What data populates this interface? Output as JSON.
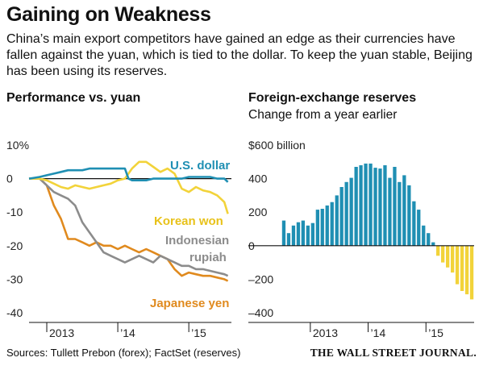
{
  "title": "Gaining on Weakness",
  "dek": "China’s main export competitors have gained an edge as their currencies have fallen against the yuan, which is tied to the dollar. To keep the yuan stable, Beijing has been using its reserves.",
  "source": "Sources: Tullett Prebon (forex); FactSet (reserves)",
  "brand": "THE WALL STREET JOURNAL.",
  "chart_data": [
    {
      "type": "line",
      "title": "Performance vs. yuan",
      "ylabel": "",
      "ylim": [
        -40,
        10
      ],
      "grid": false,
      "y_ticks": [
        {
          "v": 10,
          "label": "10%"
        },
        {
          "v": 0,
          "label": "0"
        },
        {
          "v": -10,
          "label": "-10"
        },
        {
          "v": -20,
          "label": "-20"
        },
        {
          "v": -30,
          "label": "-30"
        },
        {
          "v": -40,
          "label": "-40"
        }
      ],
      "x_ticks": [
        {
          "x": 2013.0,
          "label": "2013"
        },
        {
          "x": 2014.0,
          "label": "’14"
        },
        {
          "x": 2015.0,
          "label": "’15"
        }
      ],
      "x_range": [
        2012.75,
        2015.6
      ],
      "colors": {
        "U.S. dollar": "#1f8fb3",
        "Korean won": "#f2d33a",
        "Indonesian rupiah": "#8c8c8c",
        "Japanese yen": "#e08a1e"
      },
      "series": [
        {
          "name": "U.S. dollar",
          "label_lines": [
            "U.S. dollar"
          ],
          "x": [
            2012.75,
            2012.9,
            2013.0,
            2013.1,
            2013.2,
            2013.3,
            2013.4,
            2013.5,
            2013.6,
            2013.7,
            2013.8,
            2013.9,
            2014.0,
            2014.1,
            2014.15,
            2014.2,
            2014.3,
            2014.4,
            2014.5,
            2014.6,
            2014.7,
            2014.8,
            2014.9,
            2015.0,
            2015.1,
            2015.2,
            2015.3,
            2015.4,
            2015.5,
            2015.55
          ],
          "values": [
            0,
            0.5,
            1,
            1.5,
            2,
            2.5,
            2.5,
            2.5,
            3,
            3,
            3,
            3,
            3,
            3,
            0,
            -0.5,
            -0.5,
            -0.5,
            0,
            0,
            0,
            0,
            0,
            0.5,
            0.5,
            0.5,
            0.5,
            0,
            0,
            -1
          ]
        },
        {
          "name": "Korean won",
          "label_lines": [
            "Korean won"
          ],
          "x": [
            2012.75,
            2012.9,
            2013.0,
            2013.1,
            2013.2,
            2013.3,
            2013.4,
            2013.5,
            2013.6,
            2013.7,
            2013.8,
            2013.9,
            2014.0,
            2014.1,
            2014.2,
            2014.3,
            2014.4,
            2014.5,
            2014.6,
            2014.7,
            2014.8,
            2014.9,
            2015.0,
            2015.1,
            2015.2,
            2015.3,
            2015.4,
            2015.5,
            2015.55
          ],
          "values": [
            0,
            0,
            -0.5,
            -1.5,
            -2.5,
            -3,
            -2,
            -2.5,
            -3,
            -2.5,
            -2,
            -1.5,
            -0.5,
            0,
            3,
            5,
            5,
            3.5,
            2,
            3,
            1.5,
            -3,
            -4,
            -2.5,
            -3.5,
            -4,
            -5,
            -7,
            -10.5
          ]
        },
        {
          "name": "Indonesian rupiah",
          "label_lines": [
            "Indonesian",
            "rupiah"
          ],
          "x": [
            2012.75,
            2012.9,
            2013.0,
            2013.1,
            2013.2,
            2013.3,
            2013.4,
            2013.5,
            2013.6,
            2013.7,
            2013.8,
            2013.9,
            2014.0,
            2014.1,
            2014.2,
            2014.3,
            2014.4,
            2014.5,
            2014.6,
            2014.7,
            2014.8,
            2014.9,
            2015.0,
            2015.1,
            2015.2,
            2015.3,
            2015.4,
            2015.5,
            2015.55
          ],
          "values": [
            0,
            0,
            -2,
            -4,
            -5,
            -6,
            -8,
            -13,
            -16,
            -19,
            -22,
            -23,
            -24,
            -25,
            -24,
            -23,
            -24,
            -25,
            -23,
            -24,
            -25,
            -26,
            -26,
            -27,
            -27,
            -27.5,
            -28,
            -28.5,
            -29
          ]
        },
        {
          "name": "Japanese yen",
          "label_lines": [
            "Japanese yen"
          ],
          "x": [
            2012.75,
            2012.9,
            2013.0,
            2013.1,
            2013.2,
            2013.3,
            2013.4,
            2013.5,
            2013.6,
            2013.7,
            2013.8,
            2013.9,
            2014.0,
            2014.1,
            2014.2,
            2014.3,
            2014.4,
            2014.5,
            2014.6,
            2014.7,
            2014.8,
            2014.9,
            2015.0,
            2015.1,
            2015.2,
            2015.3,
            2015.4,
            2015.5,
            2015.55
          ],
          "values": [
            0,
            0,
            -2,
            -8,
            -12,
            -18,
            -18,
            -19,
            -20,
            -19,
            -20,
            -20,
            -21,
            -20,
            -21,
            -22,
            -21,
            -22,
            -23,
            -24,
            -27,
            -29,
            -28,
            -28.5,
            -29,
            -29,
            -29.5,
            -30,
            -30.5
          ]
        }
      ]
    },
    {
      "type": "bar",
      "title": "Foreign-exchange reserves",
      "subtitle": "Change from a year earlier",
      "ylabel": "",
      "ylim": [
        -400,
        600
      ],
      "grid": false,
      "y_ticks": [
        {
          "v": 600,
          "label": "$600 billion"
        },
        {
          "v": 400,
          "label": "400"
        },
        {
          "v": 200,
          "label": "200"
        },
        {
          "v": 0,
          "label": "0"
        },
        {
          "v": -200,
          "label": "–200"
        },
        {
          "v": -400,
          "label": "–400"
        }
      ],
      "x_ticks": [
        {
          "i": 6,
          "label": "2013"
        },
        {
          "i": 18,
          "label": "’14"
        },
        {
          "i": 30,
          "label": "’15"
        }
      ],
      "colors": {
        "positive": "#1f8fb3",
        "negative": "#f2d33a"
      },
      "values": [
        150,
        75,
        120,
        140,
        150,
        120,
        135,
        215,
        220,
        240,
        260,
        300,
        350,
        380,
        405,
        470,
        480,
        490,
        490,
        465,
        460,
        480,
        405,
        470,
        380,
        420,
        360,
        265,
        215,
        120,
        75,
        20,
        -60,
        -100,
        -130,
        -160,
        -230,
        -270,
        -290,
        -320
      ]
    }
  ]
}
